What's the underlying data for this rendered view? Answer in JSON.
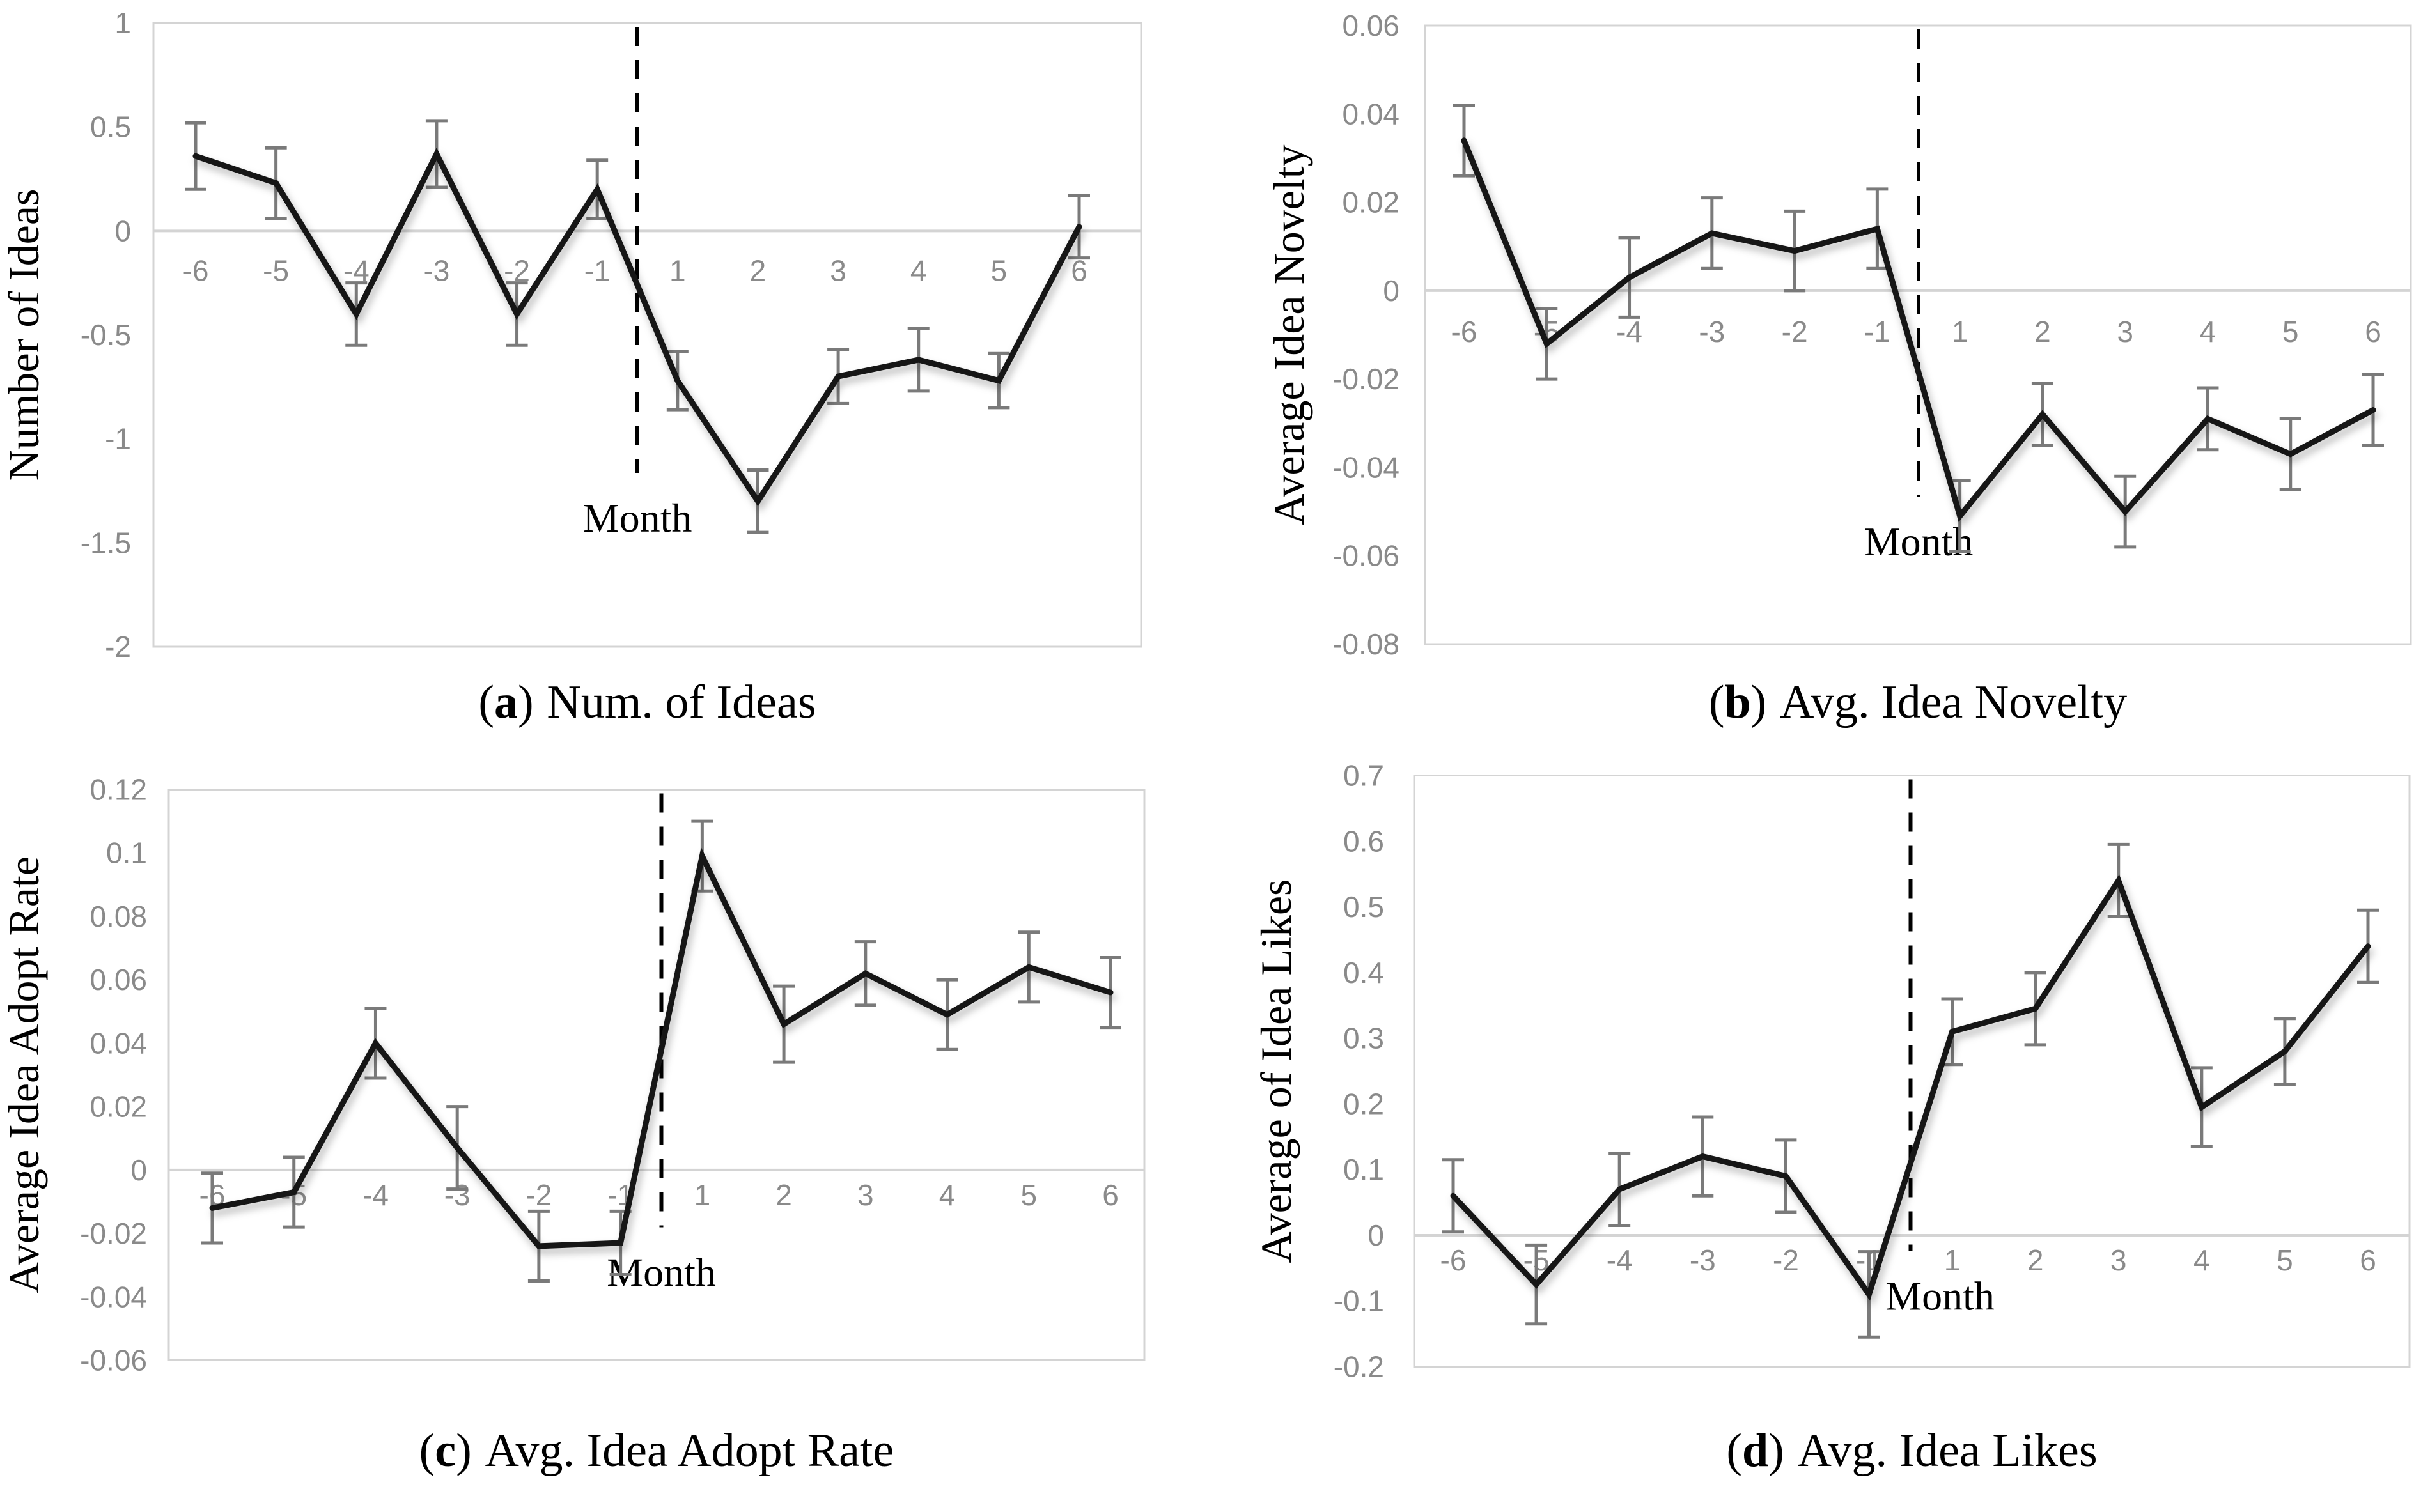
{
  "chart_data": [
    {
      "id": "a",
      "type": "line",
      "caption": {
        "prefix": "(",
        "letter": "a",
        "suffix": ")",
        "label": "Num. of Ideas"
      },
      "xlabel": "Month",
      "ylabel": "Number of Ideas",
      "categories": [
        "-6",
        "-5",
        "-4",
        "-3",
        "-2",
        "-1",
        "1",
        "2",
        "3",
        "4",
        "5",
        "6"
      ],
      "values": [
        0.36,
        0.23,
        -0.4,
        0.37,
        -0.4,
        0.2,
        -0.72,
        -1.3,
        -0.7,
        -0.62,
        -0.72,
        0.02
      ],
      "errors": [
        0.16,
        0.17,
        0.15,
        0.16,
        0.15,
        0.14,
        0.14,
        0.15,
        0.13,
        0.15,
        0.13,
        0.15
      ],
      "ylim": [
        -2,
        1
      ],
      "yticks": [
        {
          "v": 1,
          "label": "1"
        },
        {
          "v": 0.5,
          "label": "0.5"
        },
        {
          "v": 0,
          "label": "0"
        },
        {
          "v": -0.5,
          "label": "-0.5"
        },
        {
          "v": -1,
          "label": "-1"
        },
        {
          "v": -1.5,
          "label": "-1.5"
        },
        {
          "v": -2,
          "label": "-2"
        }
      ],
      "grid": "zero-line-only",
      "legend": "none",
      "event_line": {
        "x": 0,
        "style": "dashed"
      },
      "colors": {
        "line": "#161616",
        "error": "#7a7a7a",
        "axis": "#d4d4d4",
        "tick_text": "#8a8a8a"
      }
    },
    {
      "id": "b",
      "type": "line",
      "caption": {
        "prefix": "(",
        "letter": "b",
        "suffix": ")",
        "label": "Avg. Idea Novelty"
      },
      "xlabel": "Month",
      "ylabel": "Average Idea Novelty",
      "categories": [
        "-6",
        "-5",
        "-4",
        "-3",
        "-2",
        "-1",
        "1",
        "2",
        "3",
        "4",
        "5",
        "6"
      ],
      "values": [
        0.034,
        -0.012,
        0.003,
        0.013,
        0.009,
        0.014,
        -0.051,
        -0.028,
        -0.05,
        -0.029,
        -0.037,
        -0.027
      ],
      "errors": [
        0.008,
        0.008,
        0.009,
        0.008,
        0.009,
        0.009,
        0.008,
        0.007,
        0.008,
        0.007,
        0.008,
        0.008
      ],
      "ylim": [
        -0.08,
        0.06
      ],
      "yticks": [
        {
          "v": 0.06,
          "label": "0.06"
        },
        {
          "v": 0.04,
          "label": "0.04"
        },
        {
          "v": 0.02,
          "label": "0.02"
        },
        {
          "v": 0,
          "label": "0"
        },
        {
          "v": -0.02,
          "label": "-0.02"
        },
        {
          "v": -0.04,
          "label": "-0.04"
        },
        {
          "v": -0.06,
          "label": "-0.06"
        },
        {
          "v": -0.08,
          "label": "-0.08"
        }
      ],
      "grid": "zero-line-only",
      "legend": "none",
      "event_line": {
        "x": 0,
        "style": "dashed"
      },
      "colors": {
        "line": "#161616",
        "error": "#7a7a7a",
        "axis": "#d4d4d4",
        "tick_text": "#8a8a8a"
      }
    },
    {
      "id": "c",
      "type": "line",
      "caption": {
        "prefix": "(",
        "letter": "c",
        "suffix": ")",
        "label": "Avg. Idea Adopt Rate"
      },
      "xlabel": "Month",
      "ylabel": "Average Idea Adopt Rate",
      "categories": [
        "-6",
        "-5",
        "-4",
        "-3",
        "-2",
        "-1",
        "1",
        "2",
        "3",
        "4",
        "5",
        "6"
      ],
      "values": [
        -0.012,
        -0.007,
        0.04,
        0.007,
        -0.024,
        -0.023,
        0.099,
        0.046,
        0.062,
        0.049,
        0.064,
        0.056
      ],
      "errors": [
        0.011,
        0.011,
        0.011,
        0.013,
        0.011,
        0.01,
        0.011,
        0.012,
        0.01,
        0.011,
        0.011,
        0.011
      ],
      "ylim": [
        -0.06,
        0.12
      ],
      "yticks": [
        {
          "v": 0.12,
          "label": "0.12"
        },
        {
          "v": 0.1,
          "label": "0.1"
        },
        {
          "v": 0.08,
          "label": "0.08"
        },
        {
          "v": 0.06,
          "label": "0.06"
        },
        {
          "v": 0.04,
          "label": "0.04"
        },
        {
          "v": 0.02,
          "label": "0.02"
        },
        {
          "v": 0,
          "label": "0"
        },
        {
          "v": -0.02,
          "label": "-0.02"
        },
        {
          "v": -0.04,
          "label": "-0.04"
        },
        {
          "v": -0.06,
          "label": "-0.06"
        }
      ],
      "grid": "zero-line-only",
      "legend": "none",
      "event_line": {
        "x": 0,
        "style": "dashed"
      },
      "colors": {
        "line": "#161616",
        "error": "#7a7a7a",
        "axis": "#d4d4d4",
        "tick_text": "#8a8a8a"
      }
    },
    {
      "id": "d",
      "type": "line",
      "caption": {
        "prefix": "(",
        "letter": "d",
        "suffix": ")",
        "label": "Avg. Idea Likes"
      },
      "xlabel": "Month",
      "ylabel": "Average of Idea Likes",
      "categories": [
        "-6",
        "-5",
        "-4",
        "-3",
        "-2",
        "-1",
        "1",
        "2",
        "3",
        "4",
        "5",
        "6"
      ],
      "values": [
        0.06,
        -0.075,
        0.07,
        0.12,
        0.09,
        -0.09,
        0.31,
        0.345,
        0.54,
        0.195,
        0.28,
        0.44
      ],
      "errors": [
        0.055,
        0.06,
        0.055,
        0.06,
        0.055,
        0.065,
        0.05,
        0.055,
        0.055,
        0.06,
        0.05,
        0.055
      ],
      "ylim": [
        -0.2,
        0.7
      ],
      "yticks": [
        {
          "v": 0.7,
          "label": "0.7"
        },
        {
          "v": 0.6,
          "label": "0.6"
        },
        {
          "v": 0.5,
          "label": "0.5"
        },
        {
          "v": 0.4,
          "label": "0.4"
        },
        {
          "v": 0.3,
          "label": "0.3"
        },
        {
          "v": 0.2,
          "label": "0.2"
        },
        {
          "v": 0.1,
          "label": "0.1"
        },
        {
          "v": 0,
          "label": "0"
        },
        {
          "v": -0.1,
          "label": "-0.1"
        },
        {
          "v": -0.2,
          "label": "-0.2"
        }
      ],
      "grid": "zero-line-only",
      "legend": "none",
      "event_line": {
        "x": 0,
        "style": "dashed"
      },
      "colors": {
        "line": "#161616",
        "error": "#7a7a7a",
        "axis": "#d4d4d4",
        "tick_text": "#8a8a8a"
      }
    }
  ]
}
